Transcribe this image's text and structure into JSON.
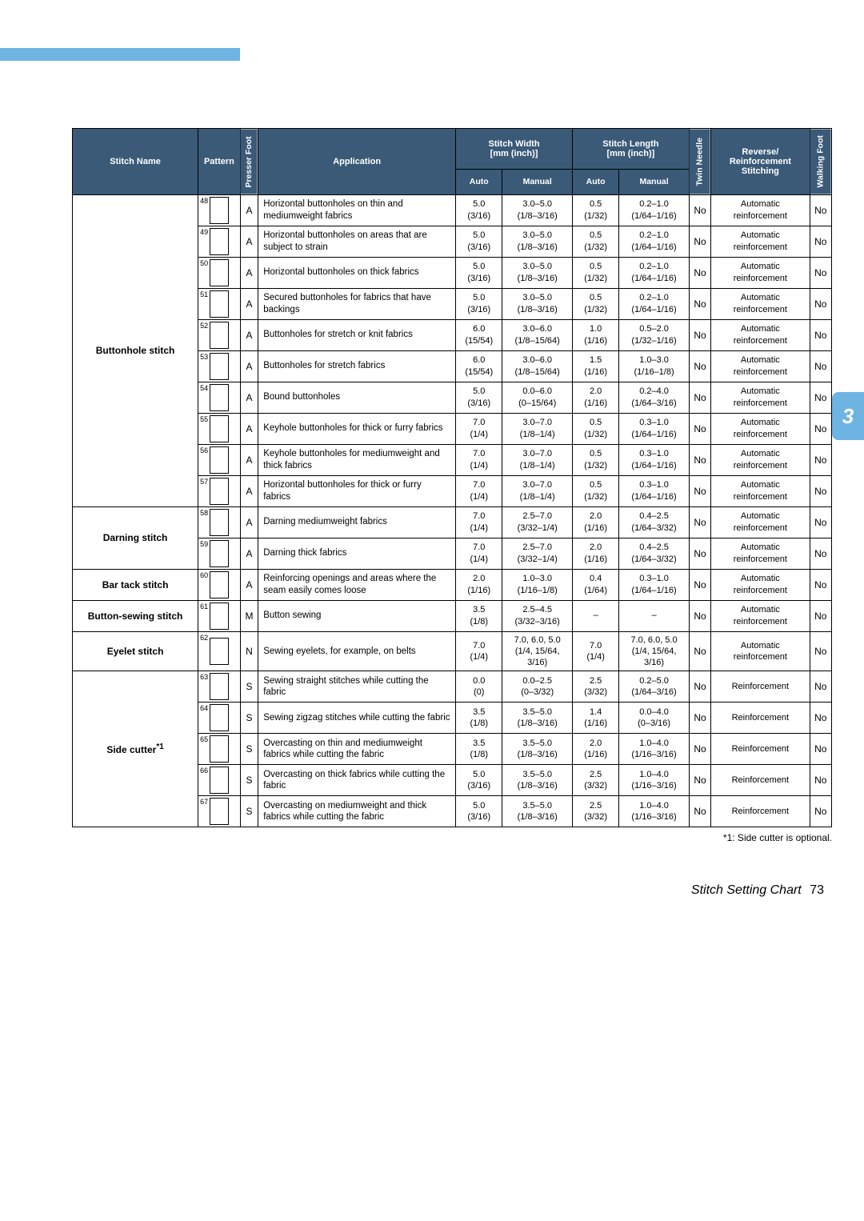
{
  "page_tab": "3",
  "footnote": "*1: Side cutter is optional.",
  "footer_title": "Stitch Setting Chart",
  "footer_page": "73",
  "headers": {
    "stitch_name": "Stitch Name",
    "pattern": "Pattern",
    "presser_foot": "Presser Foot",
    "application": "Application",
    "stitch_width": "Stitch Width\n[mm (inch)]",
    "stitch_length": "Stitch Length\n[mm (inch)]",
    "twin_needle": "Twin Needle",
    "reverse": "Reverse/\nReinforcement\nStitching",
    "walking_foot": "Walking Foot",
    "auto": "Auto",
    "manual": "Manual"
  },
  "groups": [
    {
      "name": "Buttonhole stitch",
      "rows": [
        {
          "num": "48",
          "foot": "A",
          "app": "Horizontal buttonholes on thin and mediumweight fabrics",
          "wa": "5.0\n(3/16)",
          "wm": "3.0–5.0\n(1/8–3/16)",
          "la": "0.5\n(1/32)",
          "lm": "0.2–1.0\n(1/64–1/16)",
          "tn": "No",
          "rs": "Automatic\nreinforcement",
          "wf": "No"
        },
        {
          "num": "49",
          "foot": "A",
          "app": "Horizontal buttonholes on areas that are subject to strain",
          "wa": "5.0\n(3/16)",
          "wm": "3.0–5.0\n(1/8–3/16)",
          "la": "0.5\n(1/32)",
          "lm": "0.2–1.0\n(1/64–1/16)",
          "tn": "No",
          "rs": "Automatic\nreinforcement",
          "wf": "No"
        },
        {
          "num": "50",
          "foot": "A",
          "app": "Horizontal buttonholes on thick fabrics",
          "wa": "5.0\n(3/16)",
          "wm": "3.0–5.0\n(1/8–3/16)",
          "la": "0.5\n(1/32)",
          "lm": "0.2–1.0\n(1/64–1/16)",
          "tn": "No",
          "rs": "Automatic\nreinforcement",
          "wf": "No"
        },
        {
          "num": "51",
          "foot": "A",
          "app": "Secured buttonholes for fabrics that have backings",
          "wa": "5.0\n(3/16)",
          "wm": "3.0–5.0\n(1/8–3/16)",
          "la": "0.5\n(1/32)",
          "lm": "0.2–1.0\n(1/64–1/16)",
          "tn": "No",
          "rs": "Automatic\nreinforcement",
          "wf": "No"
        },
        {
          "num": "52",
          "foot": "A",
          "app": "Buttonholes for stretch or knit fabrics",
          "wa": "6.0\n(15/54)",
          "wm": "3.0–6.0\n(1/8–15/64)",
          "la": "1.0\n(1/16)",
          "lm": "0.5–2.0\n(1/32–1/16)",
          "tn": "No",
          "rs": "Automatic\nreinforcement",
          "wf": "No"
        },
        {
          "num": "53",
          "foot": "A",
          "app": "Buttonholes for stretch fabrics",
          "wa": "6.0\n(15/54)",
          "wm": "3.0–6.0\n(1/8–15/64)",
          "la": "1.5\n(1/16)",
          "lm": "1.0–3.0\n(1/16–1/8)",
          "tn": "No",
          "rs": "Automatic\nreinforcement",
          "wf": "No"
        },
        {
          "num": "54",
          "foot": "A",
          "app": "Bound buttonholes",
          "wa": "5.0\n(3/16)",
          "wm": "0.0–6.0\n(0–15/64)",
          "la": "2.0\n(1/16)",
          "lm": "0.2–4.0\n(1/64–3/16)",
          "tn": "No",
          "rs": "Automatic\nreinforcement",
          "wf": "No"
        },
        {
          "num": "55",
          "foot": "A",
          "app": "Keyhole buttonholes for thick or furry fabrics",
          "wa": "7.0\n(1/4)",
          "wm": "3.0–7.0\n(1/8–1/4)",
          "la": "0.5\n(1/32)",
          "lm": "0.3–1.0\n(1/64–1/16)",
          "tn": "No",
          "rs": "Automatic\nreinforcement",
          "wf": "No"
        },
        {
          "num": "56",
          "foot": "A",
          "app": "Keyhole buttonholes for mediumweight and thick fabrics",
          "wa": "7.0\n(1/4)",
          "wm": "3.0–7.0\n(1/8–1/4)",
          "la": "0.5\n(1/32)",
          "lm": "0.3–1.0\n(1/64–1/16)",
          "tn": "No",
          "rs": "Automatic\nreinforcement",
          "wf": "No"
        },
        {
          "num": "57",
          "foot": "A",
          "app": "Horizontal buttonholes for thick or furry fabrics",
          "wa": "7.0\n(1/4)",
          "wm": "3.0–7.0\n(1/8–1/4)",
          "la": "0.5\n(1/32)",
          "lm": "0.3–1.0\n(1/64–1/16)",
          "tn": "No",
          "rs": "Automatic\nreinforcement",
          "wf": "No"
        }
      ]
    },
    {
      "name": "Darning stitch",
      "rows": [
        {
          "num": "58",
          "foot": "A",
          "app": "Darning mediumweight fabrics",
          "wa": "7.0\n(1/4)",
          "wm": "2.5–7.0\n(3/32–1/4)",
          "la": "2.0\n(1/16)",
          "lm": "0.4–2.5\n(1/64–3/32)",
          "tn": "No",
          "rs": "Automatic\nreinforcement",
          "wf": "No"
        },
        {
          "num": "59",
          "foot": "A",
          "app": "Darning thick fabrics",
          "wa": "7.0\n(1/4)",
          "wm": "2.5–7.0\n(3/32–1/4)",
          "la": "2.0\n(1/16)",
          "lm": "0.4–2.5\n(1/64–3/32)",
          "tn": "No",
          "rs": "Automatic\nreinforcement",
          "wf": "No"
        }
      ]
    },
    {
      "name": "Bar tack stitch",
      "rows": [
        {
          "num": "60",
          "foot": "A",
          "app": "Reinforcing openings and areas where the seam easily comes loose",
          "wa": "2.0\n(1/16)",
          "wm": "1.0–3.0\n(1/16–1/8)",
          "la": "0.4\n(1/64)",
          "lm": "0.3–1.0\n(1/64–1/16)",
          "tn": "No",
          "rs": "Automatic\nreinforcement",
          "wf": "No"
        }
      ]
    },
    {
      "name": "Button-sewing stitch",
      "rows": [
        {
          "num": "61",
          "foot": "M",
          "app": "Button sewing",
          "wa": "3.5\n(1/8)",
          "wm": "2.5–4.5\n(3/32–3/16)",
          "la": "–",
          "lm": "–",
          "tn": "No",
          "rs": "Automatic\nreinforcement",
          "wf": "No"
        }
      ]
    },
    {
      "name": "Eyelet stitch",
      "rows": [
        {
          "num": "62",
          "foot": "N",
          "app": "Sewing eyelets, for example, on belts",
          "wa": "7.0\n(1/4)",
          "wm": "7.0, 6.0, 5.0\n(1/4, 15/64,\n3/16)",
          "la": "7.0\n(1/4)",
          "lm": "7.0, 6.0, 5.0\n(1/4, 15/64,\n3/16)",
          "tn": "No",
          "rs": "Automatic\nreinforcement",
          "wf": "No"
        }
      ]
    },
    {
      "name": "Side cutter*1",
      "rows": [
        {
          "num": "63",
          "foot": "S",
          "app": "Sewing straight stitches while cutting the fabric",
          "wa": "0.0\n(0)",
          "wm": "0.0–2.5\n(0–3/32)",
          "la": "2.5\n(3/32)",
          "lm": "0.2–5.0\n(1/64–3/16)",
          "tn": "No",
          "rs": "Reinforcement",
          "wf": "No"
        },
        {
          "num": "64",
          "foot": "S",
          "app": "Sewing zigzag stitches while cutting the fabric",
          "wa": "3.5\n(1/8)",
          "wm": "3.5–5.0\n(1/8–3/16)",
          "la": "1.4\n(1/16)",
          "lm": "0.0–4.0\n(0–3/16)",
          "tn": "No",
          "rs": "Reinforcement",
          "wf": "No"
        },
        {
          "num": "65",
          "foot": "S",
          "app": "Overcasting on thin and mediumweight fabrics while cutting the fabric",
          "wa": "3.5\n(1/8)",
          "wm": "3.5–5.0\n(1/8–3/16)",
          "la": "2.0\n(1/16)",
          "lm": "1.0–4.0\n(1/16–3/16)",
          "tn": "No",
          "rs": "Reinforcement",
          "wf": "No"
        },
        {
          "num": "66",
          "foot": "S",
          "app": "Overcasting on thick fabrics while cutting the fabric",
          "wa": "5.0\n(3/16)",
          "wm": "3.5–5.0\n(1/8–3/16)",
          "la": "2.5\n(3/32)",
          "lm": "1.0–4.0\n(1/16–3/16)",
          "tn": "No",
          "rs": "Reinforcement",
          "wf": "No"
        },
        {
          "num": "67",
          "foot": "S",
          "app": "Overcasting on mediumweight and thick fabrics while cutting the fabric",
          "wa": "5.0\n(3/16)",
          "wm": "3.5–5.0\n(1/8–3/16)",
          "la": "2.5\n(3/32)",
          "lm": "1.0–4.0\n(1/16–3/16)",
          "tn": "No",
          "rs": "Reinforcement",
          "wf": "No"
        }
      ]
    }
  ]
}
